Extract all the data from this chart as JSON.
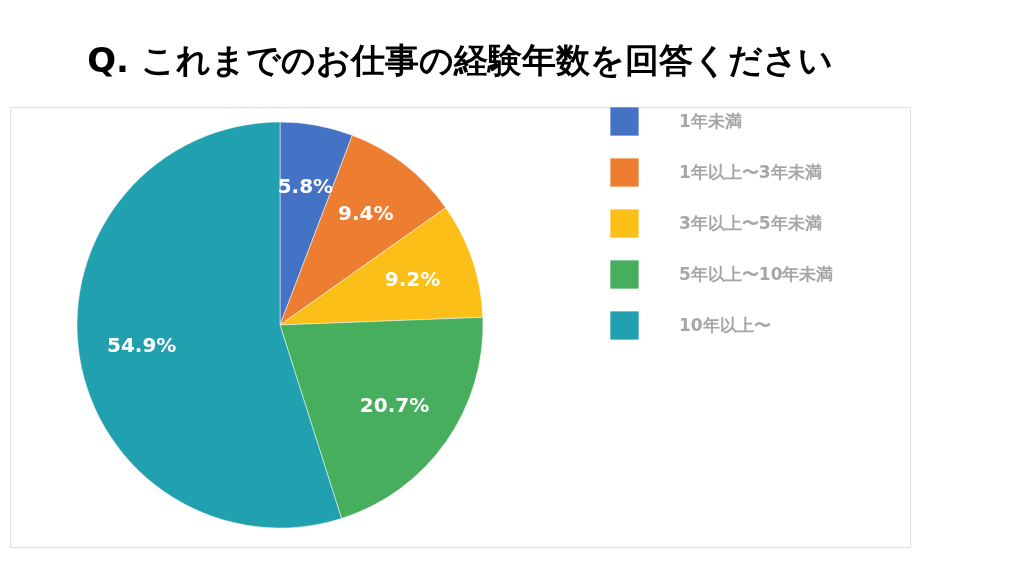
{
  "chart_data": {
    "type": "pie",
    "title": "Q. これまでのお仕事の経験年数を回答ください",
    "categories": [
      "1年未満",
      "1年以上〜3年未満",
      "3年以上〜5年未満",
      "5年以上〜10年未満",
      "10年以上〜"
    ],
    "values": [
      5.8,
      9.4,
      9.2,
      20.7,
      54.9
    ],
    "value_labels": [
      "5.8%",
      "9.4%",
      "9.2%",
      "20.7%",
      "54.9%"
    ],
    "colors": [
      "#4472c4",
      "#ed7d31",
      "#fbbf17",
      "#46ae5d",
      "#21a0b0"
    ],
    "legend": "right"
  }
}
